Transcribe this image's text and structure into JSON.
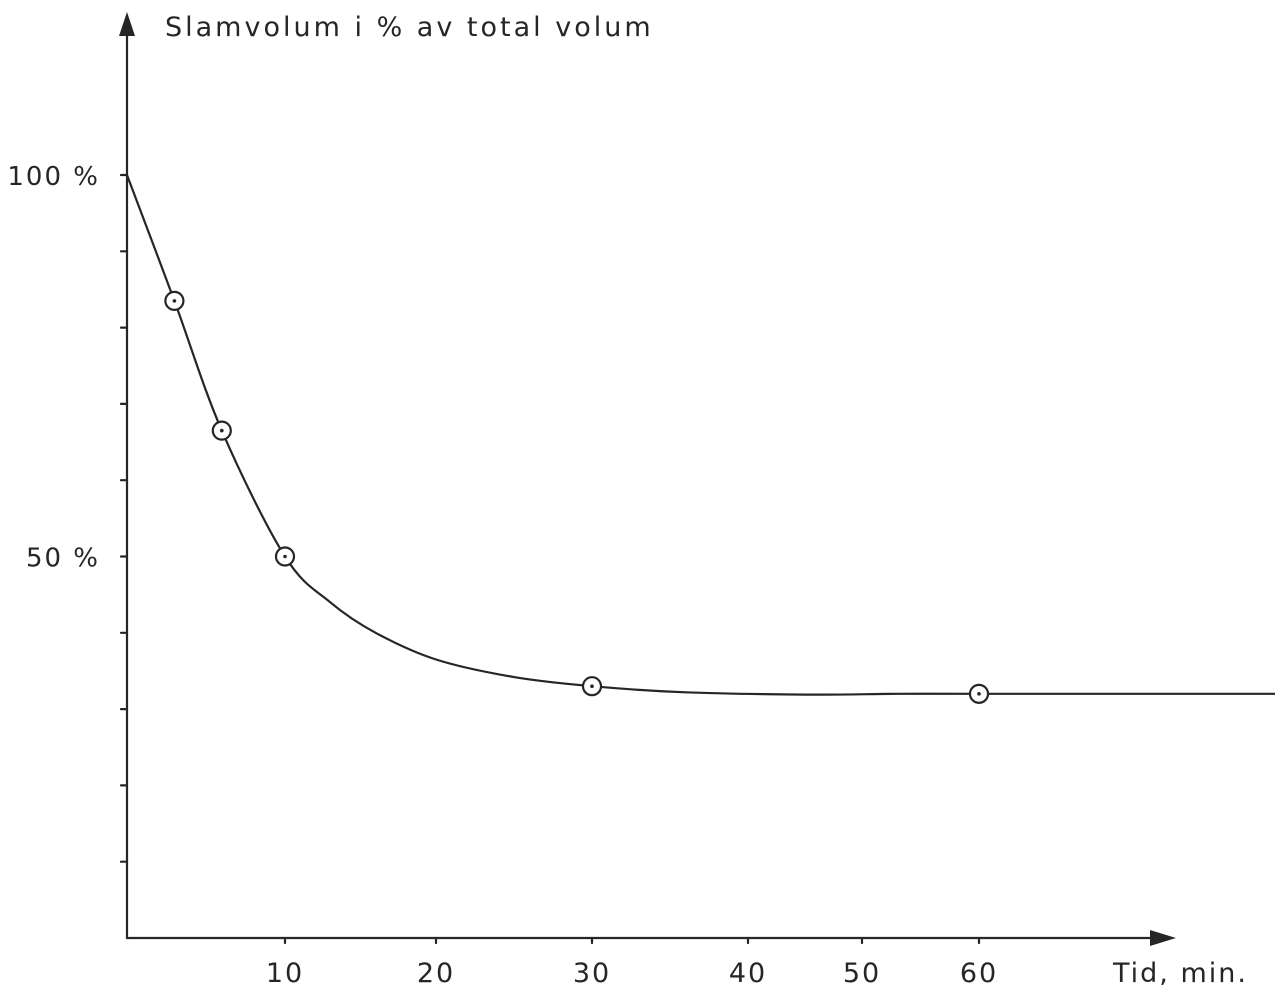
{
  "chart_data": {
    "type": "line",
    "ylabel": "Slamvolum i % av total volum",
    "xlabel": "Tid, min.",
    "x_ticks": [
      {
        "value": 10,
        "label": "10"
      },
      {
        "value": 20,
        "label": "20"
      },
      {
        "value": 30,
        "label": "30"
      },
      {
        "value": 40,
        "label": "40"
      },
      {
        "value": 50,
        "label": "50"
      },
      {
        "value": 60,
        "label": "60"
      }
    ],
    "y_ticks": [
      10,
      20,
      30,
      40,
      50,
      60,
      70,
      80,
      90,
      100
    ],
    "y_tick_labels": [
      {
        "value": 100,
        "label": "100 %"
      },
      {
        "value": 50,
        "label": "50 %"
      }
    ],
    "ylim": [
      0,
      100
    ],
    "grid": false,
    "markers": [
      {
        "x": 3,
        "y": 83.5
      },
      {
        "x": 6,
        "y": 66.5
      },
      {
        "x": 10,
        "y": 50
      },
      {
        "x": 30,
        "y": 33
      },
      {
        "x": 60,
        "y": 32
      }
    ],
    "curve": [
      {
        "x": 0,
        "y": 100
      },
      {
        "x": 3,
        "y": 83.5
      },
      {
        "x": 6,
        "y": 66.5
      },
      {
        "x": 10,
        "y": 50
      },
      {
        "x": 13,
        "y": 44
      },
      {
        "x": 16,
        "y": 40
      },
      {
        "x": 20,
        "y": 36.5
      },
      {
        "x": 25,
        "y": 34.2
      },
      {
        "x": 30,
        "y": 33
      },
      {
        "x": 36,
        "y": 32.2
      },
      {
        "x": 45,
        "y": 31.9
      },
      {
        "x": 53,
        "y": 32
      },
      {
        "x": 60,
        "y": 32
      },
      {
        "x": 70,
        "y": 32
      },
      {
        "x": 80,
        "y": 32
      }
    ]
  }
}
